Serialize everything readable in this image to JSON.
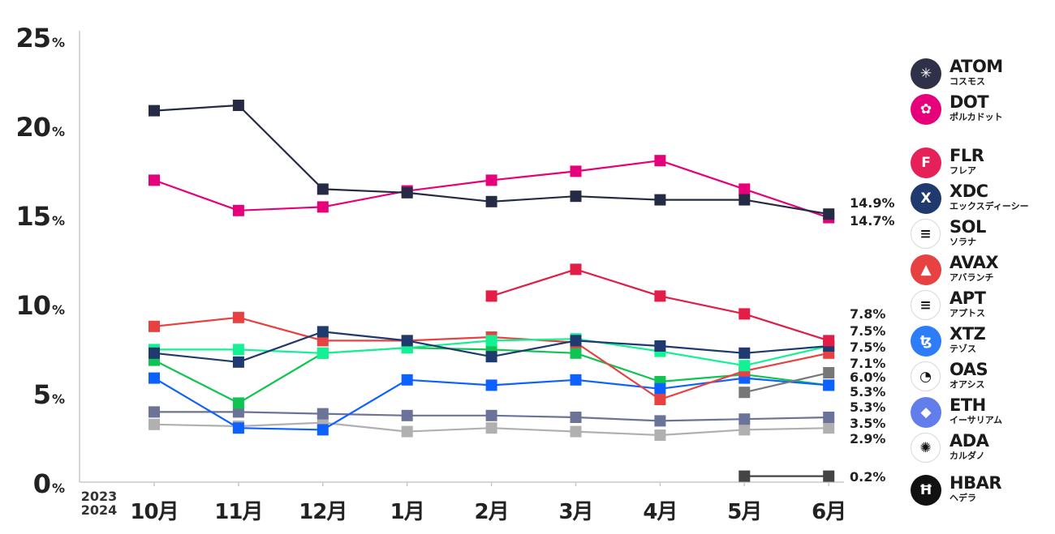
{
  "chart_data": {
    "type": "line",
    "categories": [
      "10月",
      "11月",
      "12月",
      "1月",
      "2月",
      "3月",
      "4月",
      "5月",
      "6月"
    ],
    "year_labels": [
      "2023",
      "2024"
    ],
    "y_ticks": [
      {
        "value": 0,
        "num": "0",
        "unit": "%"
      },
      {
        "value": 5,
        "num": "5",
        "unit": "%"
      },
      {
        "value": 10,
        "num": "10",
        "unit": "%"
      },
      {
        "value": 15,
        "num": "15",
        "unit": "%"
      },
      {
        "value": 20,
        "num": "20",
        "unit": "%"
      },
      {
        "value": 25,
        "num": "25",
        "unit": "%"
      }
    ],
    "ylim": [
      0,
      25
    ],
    "grid": false,
    "legend_position": "right",
    "series": [
      {
        "name": "ATOM",
        "color": "#262b45",
        "values": [
          20.7,
          21.0,
          16.3,
          16.1,
          15.6,
          15.9,
          15.7,
          15.7,
          14.9
        ]
      },
      {
        "name": "DOT",
        "color": "#e6007a",
        "values": [
          16.8,
          15.1,
          15.3,
          16.2,
          16.8,
          17.3,
          17.9,
          16.3,
          14.7
        ]
      },
      {
        "name": "FLR",
        "color": "#e11d48",
        "values": [
          null,
          null,
          null,
          null,
          10.3,
          11.8,
          10.3,
          9.3,
          7.8
        ]
      },
      {
        "name": "XDC",
        "color": "#1e3a6e",
        "values": [
          7.1,
          6.6,
          8.3,
          7.8,
          6.9,
          7.8,
          7.5,
          7.1,
          7.5
        ]
      },
      {
        "name": "SOL",
        "color": "#14f195",
        "values": [
          7.3,
          7.3,
          7.1,
          7.4,
          7.8,
          7.9,
          7.2,
          6.4,
          7.5
        ]
      },
      {
        "name": "AVAX",
        "color": "#e84142",
        "values": [
          8.6,
          9.1,
          7.8,
          7.8,
          8.0,
          7.7,
          4.5,
          6.1,
          7.1
        ]
      },
      {
        "name": "APT",
        "color": "#777777",
        "values": [
          null,
          null,
          null,
          null,
          null,
          null,
          null,
          4.9,
          6.0
        ]
      },
      {
        "name": "XTZ",
        "color": "#0d61ff",
        "values": [
          5.7,
          2.9,
          2.8,
          5.6,
          5.3,
          5.6,
          5.1,
          5.7,
          5.3
        ]
      },
      {
        "name": "OAS",
        "color": "#10c452",
        "values": [
          6.7,
          4.3,
          7.1,
          7.4,
          7.3,
          7.1,
          5.5,
          5.9,
          5.3
        ]
      },
      {
        "name": "ETH",
        "color": "#6b7399",
        "values": [
          3.8,
          3.8,
          3.7,
          3.6,
          3.6,
          3.5,
          3.3,
          3.4,
          3.5
        ]
      },
      {
        "name": "ADA",
        "color": "#b0b0b0",
        "values": [
          3.1,
          3.0,
          3.2,
          2.7,
          2.9,
          2.7,
          2.5,
          2.8,
          2.9
        ]
      },
      {
        "name": "HBAR",
        "color": "#444444",
        "values": [
          null,
          null,
          null,
          null,
          null,
          null,
          null,
          0.2,
          0.2
        ]
      }
    ],
    "end_labels": [
      {
        "text": "14.9%",
        "value": 14.9
      },
      {
        "text": "14.7%",
        "value": 14.7
      },
      {
        "text": "7.8%",
        "value": 7.8
      },
      {
        "text": "7.5%",
        "value": 7.5
      },
      {
        "text": "7.5%",
        "value": 7.5
      },
      {
        "text": "7.1%",
        "value": 7.1
      },
      {
        "text": "6.0%",
        "value": 6.0
      },
      {
        "text": "5.3%",
        "value": 5.3
      },
      {
        "text": "5.3%",
        "value": 5.3
      },
      {
        "text": "3.5%",
        "value": 3.5
      },
      {
        "text": "2.9%",
        "value": 2.9
      },
      {
        "text": "0.2%",
        "value": 0.2
      }
    ]
  },
  "legend": [
    {
      "name": "ATOM",
      "sub": "コスモス",
      "color": "#2e3148",
      "glyph": "✳",
      "icon": "atom-icon"
    },
    {
      "name": "DOT",
      "sub": "ポルカドット",
      "color": "#e6007a",
      "glyph": "✿",
      "icon": "dot-icon"
    },
    {
      "name": "FLR",
      "sub": "フレア",
      "color": "#e62058",
      "glyph": "F",
      "icon": "flr-icon"
    },
    {
      "name": "XDC",
      "sub": "エックスディーシー",
      "color": "#1e3a6e",
      "glyph": "X",
      "icon": "xdc-icon"
    },
    {
      "name": "SOL",
      "sub": "ソラナ",
      "color": "#ffffff",
      "glyph": "≡",
      "icon": "sol-icon"
    },
    {
      "name": "AVAX",
      "sub": "アバランチ",
      "color": "#e84142",
      "glyph": "▲",
      "icon": "avax-icon"
    },
    {
      "name": "APT",
      "sub": "アプトス",
      "color": "#ffffff",
      "glyph": "≡",
      "icon": "apt-icon"
    },
    {
      "name": "XTZ",
      "sub": "テゾス",
      "color": "#2c7df7",
      "glyph": "ꜩ",
      "icon": "xtz-icon"
    },
    {
      "name": "OAS",
      "sub": "オアシス",
      "color": "#ffffff",
      "glyph": "◔",
      "icon": "oas-icon"
    },
    {
      "name": "ETH",
      "sub": "イーサリアム",
      "color": "#627eea",
      "glyph": "◆",
      "icon": "eth-icon"
    },
    {
      "name": "ADA",
      "sub": "カルダノ",
      "color": "#ffffff",
      "glyph": "✺",
      "icon": "ada-icon"
    },
    {
      "name": "HBAR",
      "sub": "ヘデラ",
      "color": "#111111",
      "glyph": "Ħ",
      "icon": "hbar-icon"
    }
  ]
}
